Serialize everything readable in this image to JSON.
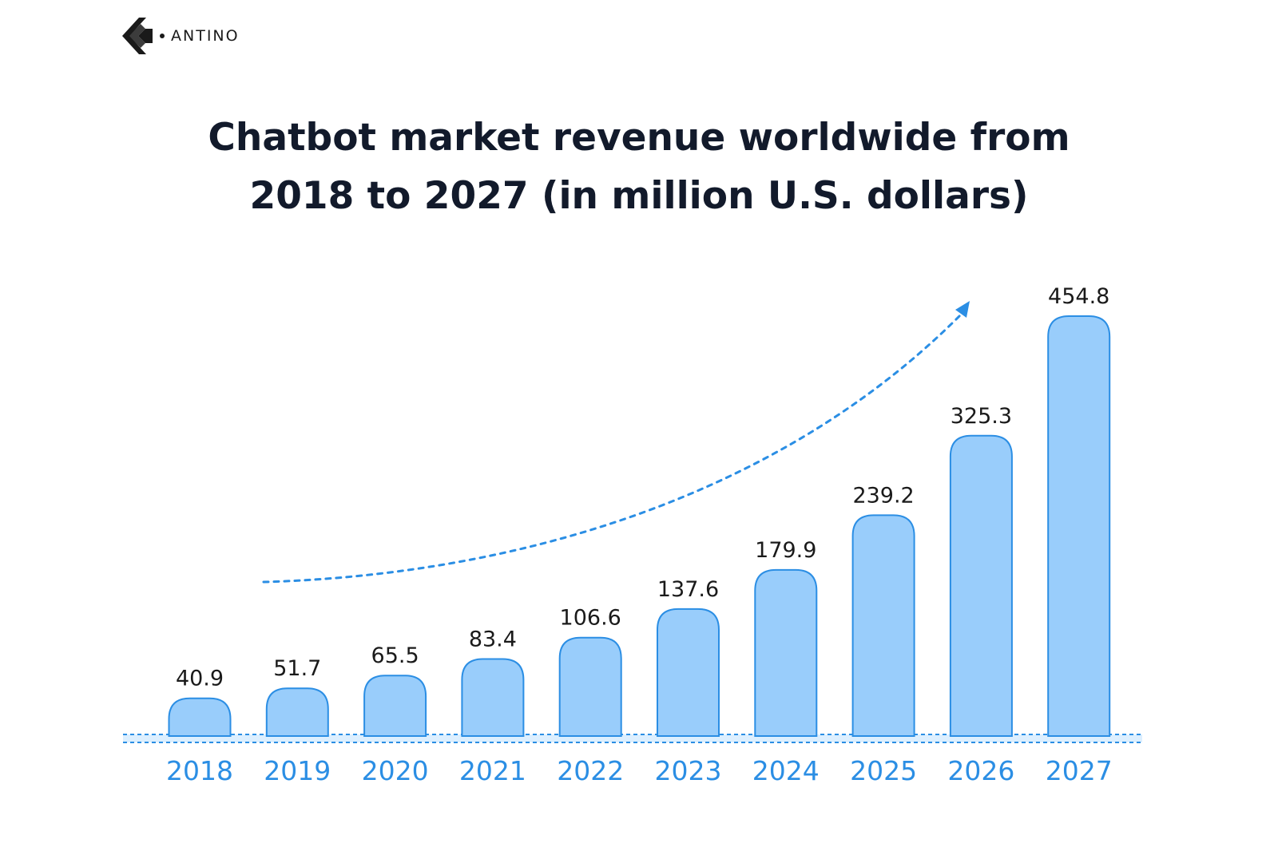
{
  "brand": {
    "name": "ANTINO",
    "logo_icon": "antino-arrow-icon"
  },
  "chart_data": {
    "type": "bar",
    "title": "Chatbot market revenue worldwide from 2018 to 2027 (in million U.S. dollars)",
    "title_lines": [
      "Chatbot market revenue worldwide from",
      "2018 to 2027 (in million U.S. dollars)"
    ],
    "xlabel": "",
    "ylabel": "",
    "categories": [
      "2018",
      "2019",
      "2020",
      "2021",
      "2022",
      "2023",
      "2024",
      "2025",
      "2026",
      "2027"
    ],
    "values": [
      40.9,
      51.7,
      65.5,
      83.4,
      106.6,
      137.6,
      179.9,
      239.2,
      325.3,
      454.8
    ],
    "value_labels": [
      "40.9",
      "51.7",
      "65.5",
      "83.4",
      "106.6",
      "137.6",
      "179.9",
      "239.2",
      "325.3",
      "454.8"
    ],
    "ylim": [
      0,
      454.8
    ],
    "grid": false,
    "legend": "none",
    "annotation": "dashed trend arrow rising from left to right",
    "colors": {
      "bar_fill": "#99cdfb",
      "bar_stroke": "#2b8ee4",
      "category_label": "#2b8ee4",
      "value_label": "#1a1a1a",
      "trend_arrow": "#2b8ee4",
      "title": "#121a2b"
    }
  }
}
